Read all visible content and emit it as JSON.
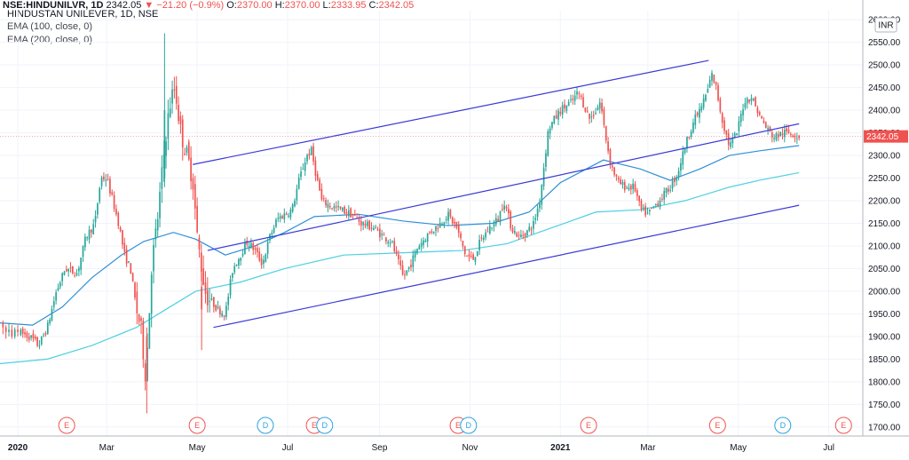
{
  "header": {
    "symbol": "NSE:HINDUNILVR, 1D",
    "last": "2342.05",
    "change": "−21.20 (−0.9%)",
    "o_label": "O:",
    "o": "2370.00",
    "h_label": "H:",
    "h": "2370.00",
    "l_label": "L:",
    "l": "2333.95",
    "c_label": "C:",
    "c": "2342.05",
    "title": "HINDUSTAN UNILEVER, 1D, NSE",
    "indicator1": "EMA (100, close, 0)",
    "indicator2": "EMA (200, close, 0)",
    "currency": "INR",
    "price_tag": "2342.05"
  },
  "colors": {
    "up": "#26a69a",
    "down": "#ef5350",
    "ema100": "#2f8fd6",
    "ema200": "#4dd0e1",
    "channel": "#3a3ad6",
    "earnings": "#ef5350",
    "dividend": "#29a3e0"
  },
  "chart_data": {
    "type": "candlestick",
    "ylim": [
      1680,
      2620
    ],
    "y_ticks": [
      1700,
      1750,
      1800,
      1850,
      1900,
      1950,
      2000,
      2050,
      2100,
      2150,
      2200,
      2250,
      2300,
      2350,
      2400,
      2450,
      2500,
      2550,
      2600
    ],
    "x_ticks": [
      {
        "label": "2020",
        "bold": true,
        "day": 0
      },
      {
        "label": "Mar",
        "day": 60
      },
      {
        "label": "May",
        "day": 121
      },
      {
        "label": "Jul",
        "day": 182
      },
      {
        "label": "Sep",
        "day": 244
      },
      {
        "label": "Nov",
        "day": 305
      },
      {
        "label": "2021",
        "bold": true,
        "day": 366
      },
      {
        "label": "Mar",
        "day": 425
      },
      {
        "label": "May",
        "day": 486
      },
      {
        "label": "Jul",
        "day": 547
      }
    ],
    "day_range": [
      -12,
      570
    ],
    "anchors": [
      [
        0,
        1910
      ],
      [
        8,
        1900
      ],
      [
        14,
        1880
      ],
      [
        20,
        1920
      ],
      [
        26,
        2000
      ],
      [
        32,
        2050
      ],
      [
        40,
        2040
      ],
      [
        46,
        2120
      ],
      [
        52,
        2150
      ],
      [
        56,
        2250
      ],
      [
        60,
        2250
      ],
      [
        64,
        2200
      ],
      [
        68,
        2150
      ],
      [
        72,
        2080
      ],
      [
        76,
        2050
      ],
      [
        80,
        1960
      ],
      [
        83,
        1920
      ],
      [
        86,
        1820
      ],
      [
        88,
        1900
      ],
      [
        90,
        2050
      ],
      [
        94,
        2150
      ],
      [
        97,
        2250
      ],
      [
        100,
        2350
      ],
      [
        103,
        2420
      ],
      [
        106,
        2450
      ],
      [
        110,
        2350
      ],
      [
        114,
        2300
      ],
      [
        118,
        2250
      ],
      [
        121,
        2120
      ],
      [
        124,
        2050
      ],
      [
        127,
        1990
      ],
      [
        130,
        1980
      ],
      [
        135,
        1960
      ],
      [
        140,
        1950
      ],
      [
        145,
        2050
      ],
      [
        150,
        2080
      ],
      [
        155,
        2110
      ],
      [
        160,
        2090
      ],
      [
        165,
        2060
      ],
      [
        170,
        2120
      ],
      [
        175,
        2160
      ],
      [
        180,
        2170
      ],
      [
        185,
        2180
      ],
      [
        190,
        2250
      ],
      [
        195,
        2300
      ],
      [
        198,
        2310
      ],
      [
        201,
        2260
      ],
      [
        205,
        2200
      ],
      [
        210,
        2190
      ],
      [
        218,
        2180
      ],
      [
        225,
        2170
      ],
      [
        232,
        2150
      ],
      [
        240,
        2140
      ],
      [
        247,
        2120
      ],
      [
        252,
        2110
      ],
      [
        256,
        2070
      ],
      [
        260,
        2030
      ],
      [
        265,
        2060
      ],
      [
        270,
        2100
      ],
      [
        278,
        2130
      ],
      [
        285,
        2150
      ],
      [
        290,
        2170
      ],
      [
        296,
        2140
      ],
      [
        302,
        2080
      ],
      [
        307,
        2070
      ],
      [
        312,
        2110
      ],
      [
        318,
        2140
      ],
      [
        324,
        2160
      ],
      [
        328,
        2200
      ],
      [
        333,
        2140
      ],
      [
        338,
        2120
      ],
      [
        343,
        2130
      ],
      [
        348,
        2150
      ],
      [
        352,
        2200
      ],
      [
        355,
        2280
      ],
      [
        358,
        2360
      ],
      [
        362,
        2380
      ],
      [
        366,
        2400
      ],
      [
        370,
        2410
      ],
      [
        374,
        2420
      ],
      [
        378,
        2440
      ],
      [
        382,
        2410
      ],
      [
        386,
        2380
      ],
      [
        390,
        2400
      ],
      [
        393,
        2420
      ],
      [
        396,
        2350
      ],
      [
        400,
        2280
      ],
      [
        405,
        2240
      ],
      [
        410,
        2230
      ],
      [
        416,
        2230
      ],
      [
        420,
        2180
      ],
      [
        425,
        2170
      ],
      [
        430,
        2190
      ],
      [
        435,
        2210
      ],
      [
        440,
        2230
      ],
      [
        445,
        2260
      ],
      [
        450,
        2320
      ],
      [
        455,
        2370
      ],
      [
        460,
        2400
      ],
      [
        465,
        2440
      ],
      [
        468,
        2480
      ],
      [
        471,
        2450
      ],
      [
        475,
        2380
      ],
      [
        480,
        2320
      ],
      [
        485,
        2350
      ],
      [
        490,
        2420
      ],
      [
        495,
        2430
      ],
      [
        500,
        2390
      ],
      [
        505,
        2360
      ],
      [
        510,
        2340
      ],
      [
        516,
        2350
      ],
      [
        522,
        2350
      ],
      [
        527,
        2342
      ]
    ],
    "ema100": [
      [
        -12,
        1930
      ],
      [
        10,
        1925
      ],
      [
        30,
        1965
      ],
      [
        50,
        2030
      ],
      [
        70,
        2080
      ],
      [
        85,
        2110
      ],
      [
        105,
        2130
      ],
      [
        120,
        2115
      ],
      [
        140,
        2080
      ],
      [
        160,
        2100
      ],
      [
        180,
        2130
      ],
      [
        200,
        2165
      ],
      [
        230,
        2170
      ],
      [
        260,
        2155
      ],
      [
        290,
        2145
      ],
      [
        320,
        2150
      ],
      [
        345,
        2175
      ],
      [
        366,
        2240
      ],
      [
        395,
        2290
      ],
      [
        420,
        2270
      ],
      [
        440,
        2245
      ],
      [
        460,
        2270
      ],
      [
        480,
        2300
      ],
      [
        500,
        2310
      ],
      [
        527,
        2322
      ]
    ],
    "ema200": [
      [
        -12,
        1840
      ],
      [
        20,
        1850
      ],
      [
        50,
        1880
      ],
      [
        80,
        1920
      ],
      [
        100,
        1960
      ],
      [
        120,
        2000
      ],
      [
        150,
        2020
      ],
      [
        180,
        2050
      ],
      [
        220,
        2080
      ],
      [
        260,
        2085
      ],
      [
        300,
        2090
      ],
      [
        330,
        2105
      ],
      [
        360,
        2140
      ],
      [
        390,
        2175
      ],
      [
        420,
        2180
      ],
      [
        450,
        2200
      ],
      [
        480,
        2230
      ],
      [
        500,
        2245
      ],
      [
        527,
        2262
      ]
    ],
    "channel_lines": [
      [
        [
          118,
          2280
        ],
        [
          466,
          2510
        ]
      ],
      [
        [
          128,
          2090
        ],
        [
          527,
          2370
        ]
      ],
      [
        [
          132,
          1920
        ],
        [
          527,
          2190
        ]
      ]
    ],
    "events": [
      {
        "type": "E",
        "day": 33
      },
      {
        "type": "E",
        "day": 121
      },
      {
        "type": "D",
        "day": 167
      },
      {
        "type": "E",
        "day": 200
      },
      {
        "type": "D",
        "day": 207
      },
      {
        "type": "E",
        "day": 297
      },
      {
        "type": "D",
        "day": 304
      },
      {
        "type": "E",
        "day": 385
      },
      {
        "type": "E",
        "day": 472
      },
      {
        "type": "D",
        "day": 516
      },
      {
        "type": "E",
        "day": 557
      }
    ],
    "ohlc": [
      {
        "day": -10,
        "o": 1930,
        "h": 1935,
        "l": 1905,
        "c": 1920
      },
      {
        "day": -8,
        "o": 1920,
        "h": 1925,
        "l": 1895,
        "c": 1910
      },
      {
        "day": -6,
        "o": 1910,
        "h": 1930,
        "l": 1900,
        "c": 1915
      },
      {
        "day": -4,
        "o": 1915,
        "h": 1925,
        "l": 1895,
        "c": 1900
      },
      {
        "day": -2,
        "o": 1900,
        "h": 1920,
        "l": 1895,
        "c": 1915
      },
      {
        "day": 0,
        "o": 1915,
        "h": 1925,
        "l": 1900,
        "c": 1910
      }
    ]
  }
}
